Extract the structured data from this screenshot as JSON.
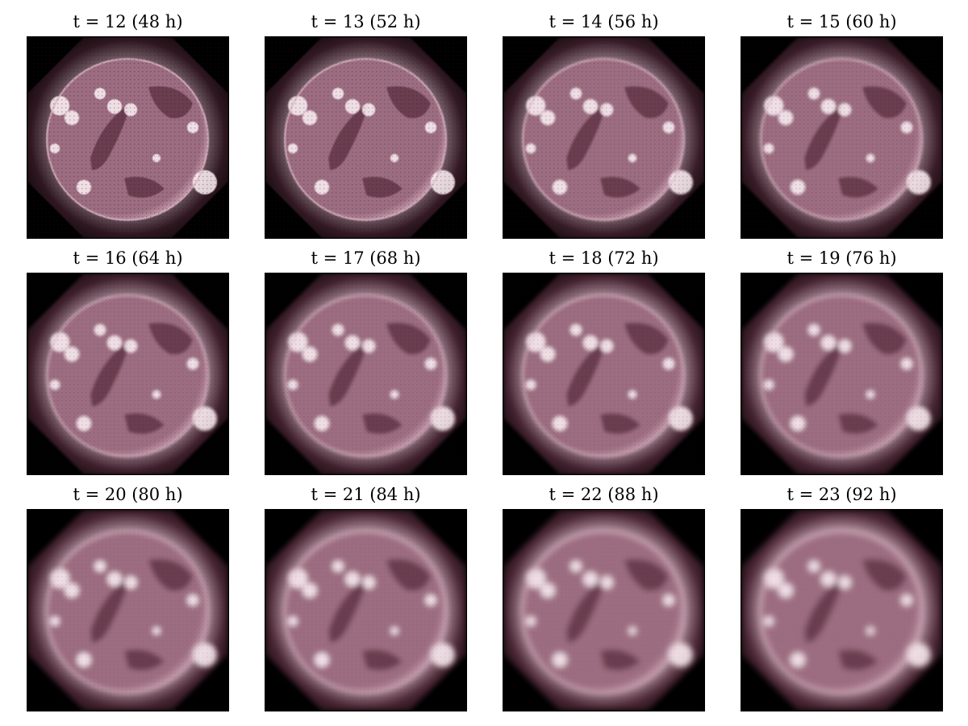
{
  "figure": {
    "panels": [
      {
        "label": "t = 12 (48 h)",
        "blur": 0.6,
        "glow": 0.55,
        "pixel_noise": 0.9
      },
      {
        "label": "t = 13 (52 h)",
        "blur": 0.9,
        "glow": 0.6,
        "pixel_noise": 0.75
      },
      {
        "label": "t = 14 (56 h)",
        "blur": 1.2,
        "glow": 0.64,
        "pixel_noise": 0.6
      },
      {
        "label": "t = 15 (60 h)",
        "blur": 1.5,
        "glow": 0.68,
        "pixel_noise": 0.5
      },
      {
        "label": "t = 16 (64 h)",
        "blur": 1.9,
        "glow": 0.72,
        "pixel_noise": 0.45
      },
      {
        "label": "t = 17 (68 h)",
        "blur": 2.2,
        "glow": 0.75,
        "pixel_noise": 0.4
      },
      {
        "label": "t = 18 (72 h)",
        "blur": 2.5,
        "glow": 0.78,
        "pixel_noise": 0.35
      },
      {
        "label": "t = 19 (76 h)",
        "blur": 2.8,
        "glow": 0.8,
        "pixel_noise": 0.3
      },
      {
        "label": "t = 20 (80 h)",
        "blur": 3.1,
        "glow": 0.83,
        "pixel_noise": 0.25
      },
      {
        "label": "t = 21 (84 h)",
        "blur": 3.4,
        "glow": 0.86,
        "pixel_noise": 0.2
      },
      {
        "label": "t = 22 (88 h)",
        "blur": 3.7,
        "glow": 0.88,
        "pixel_noise": 0.15
      },
      {
        "label": "t = 23 (92 h)",
        "blur": 4.0,
        "glow": 0.9,
        "pixel_noise": 0.1
      }
    ],
    "colors": {
      "background": "#000000",
      "disk": "#9c6d80",
      "disk_dark": "#5a2e3f",
      "corona": "#d9b3c2",
      "highlight": "#fff2f7",
      "frame": "#000000"
    }
  }
}
